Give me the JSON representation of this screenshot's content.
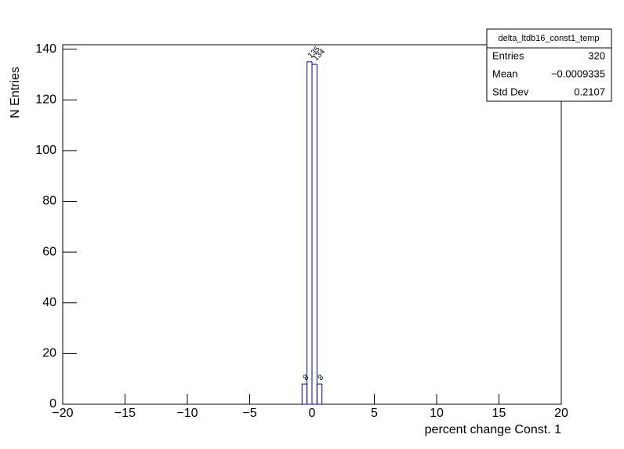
{
  "chart_data": {
    "type": "histogram",
    "x_label": "percent change Const. 1",
    "y_label": "N Entries",
    "bins": [
      -0.8,
      -0.4,
      0,
      0.4,
      0.8
    ],
    "values": [
      8,
      135,
      134,
      8
    ],
    "color": "#000099",
    "xlim": [
      -20,
      20
    ],
    "xticks": [
      {
        "value": -20,
        "label": "−20"
      },
      {
        "value": -15,
        "label": "−15"
      },
      {
        "value": -10,
        "label": "−10"
      },
      {
        "value": -5,
        "label": "−5"
      },
      0,
      5,
      10,
      15,
      20
    ],
    "ylim": [
      0,
      141.75
    ],
    "yticks": [
      0,
      20,
      40,
      60,
      80,
      100,
      120,
      140
    ],
    "stats": {
      "title": "delta_ltdb16_const1_temp",
      "rows": [
        [
          "Entries",
          "320"
        ],
        [
          "Mean",
          "−0.0009335"
        ],
        [
          "Std Dev",
          "0.2107"
        ]
      ]
    }
  }
}
